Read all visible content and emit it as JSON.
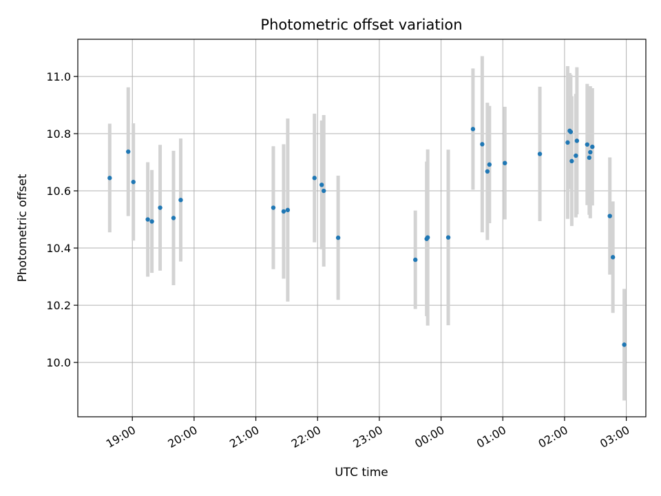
{
  "chart_data": {
    "type": "scatter",
    "title": "Photometric offset variation",
    "xlabel": "UTC time",
    "ylabel": "Photometric offset",
    "grid": true,
    "x_axis_kind": "time",
    "xlim": [
      "18:07",
      "03:19"
    ],
    "ylim": [
      9.81,
      11.13
    ],
    "x_ticks": [
      "19:00",
      "20:00",
      "21:00",
      "22:00",
      "23:00",
      "00:00",
      "01:00",
      "02:00",
      "03:00"
    ],
    "y_ticks": [
      10.0,
      10.2,
      10.4,
      10.6,
      10.8,
      11.0
    ],
    "colors": {
      "point": "#1f77b4",
      "error_bar": "#d3d3d3",
      "grid": "#b0b0b0"
    },
    "points": [
      {
        "x": "18:38",
        "y": 10.645,
        "err": 0.19
      },
      {
        "x": "18:56",
        "y": 10.737,
        "err": 0.225
      },
      {
        "x": "19:01",
        "y": 10.631,
        "err": 0.205
      },
      {
        "x": "19:15",
        "y": 10.5,
        "err": 0.2
      },
      {
        "x": "19:19",
        "y": 10.493,
        "err": 0.18
      },
      {
        "x": "19:27",
        "y": 10.541,
        "err": 0.22
      },
      {
        "x": "19:40",
        "y": 10.505,
        "err": 0.235
      },
      {
        "x": "19:47",
        "y": 10.568,
        "err": 0.215
      },
      {
        "x": "21:17",
        "y": 10.541,
        "err": 0.215
      },
      {
        "x": "21:27",
        "y": 10.528,
        "err": 0.235
      },
      {
        "x": "21:31",
        "y": 10.533,
        "err": 0.32
      },
      {
        "x": "21:57",
        "y": 10.645,
        "err": 0.225
      },
      {
        "x": "22:04",
        "y": 10.621,
        "err": 0.225
      },
      {
        "x": "22:06",
        "y": 10.6,
        "err": 0.265
      },
      {
        "x": "22:20",
        "y": 10.436,
        "err": 0.217
      },
      {
        "x": "23:35",
        "y": 10.359,
        "err": 0.172
      },
      {
        "x": "23:46",
        "y": 10.432,
        "err": 0.27
      },
      {
        "x": "23:47",
        "y": 10.437,
        "err": 0.308
      },
      {
        "x": "00:07",
        "y": 10.437,
        "err": 0.307
      },
      {
        "x": "00:31",
        "y": 10.816,
        "err": 0.212
      },
      {
        "x": "00:40",
        "y": 10.763,
        "err": 0.308
      },
      {
        "x": "00:45",
        "y": 10.668,
        "err": 0.24
      },
      {
        "x": "00:47",
        "y": 10.692,
        "err": 0.205
      },
      {
        "x": "01:02",
        "y": 10.697,
        "err": 0.197
      },
      {
        "x": "01:36",
        "y": 10.729,
        "err": 0.235
      },
      {
        "x": "02:03",
        "y": 10.769,
        "err": 0.267
      },
      {
        "x": "02:05",
        "y": 10.81,
        "err": 0.202
      },
      {
        "x": "02:06",
        "y": 10.806,
        "err": 0.2
      },
      {
        "x": "02:07",
        "y": 10.704,
        "err": 0.227
      },
      {
        "x": "02:11",
        "y": 10.723,
        "err": 0.216
      },
      {
        "x": "02:12",
        "y": 10.775,
        "err": 0.257
      },
      {
        "x": "02:22",
        "y": 10.762,
        "err": 0.212
      },
      {
        "x": "02:24",
        "y": 10.716,
        "err": 0.2
      },
      {
        "x": "02:25",
        "y": 10.735,
        "err": 0.231
      },
      {
        "x": "02:27",
        "y": 10.754,
        "err": 0.205
      },
      {
        "x": "02:44",
        "y": 10.512,
        "err": 0.205
      },
      {
        "x": "02:47",
        "y": 10.368,
        "err": 0.195
      },
      {
        "x": "02:58",
        "y": 10.062,
        "err": 0.195
      }
    ]
  }
}
